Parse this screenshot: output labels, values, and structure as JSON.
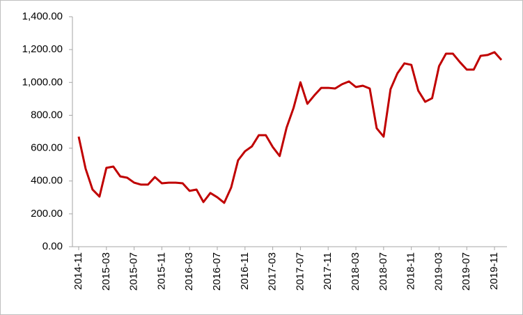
{
  "chart_data": {
    "type": "line",
    "categories": [
      "2014-11",
      null,
      null,
      null,
      "2015-03",
      null,
      null,
      null,
      "2015-07",
      null,
      null,
      null,
      "2015-11",
      null,
      null,
      null,
      "2016-03",
      null,
      null,
      null,
      "2016-07",
      null,
      null,
      null,
      "2016-11",
      null,
      null,
      null,
      "2017-03",
      null,
      null,
      null,
      "2017-07",
      null,
      null,
      null,
      "2017-11",
      null,
      null,
      null,
      "2018-03",
      null,
      null,
      null,
      "2018-07",
      null,
      null,
      null,
      "2018-11",
      null,
      null,
      null,
      "2019-03",
      null,
      null,
      null,
      "2019-07",
      null,
      null,
      null,
      "2019-11",
      null
    ],
    "series": [
      {
        "color": "#c00000",
        "values": [
          670,
          475,
          348,
          305,
          480,
          488,
          428,
          420,
          390,
          378,
          378,
          424,
          386,
          390,
          390,
          386,
          340,
          348,
          272,
          327,
          301,
          267,
          360,
          526,
          581,
          611,
          679,
          679,
          607,
          552,
          725,
          844,
          1001,
          870,
          921,
          967,
          967,
          963,
          989,
          1006,
          972,
          980,
          963,
          721,
          670,
          959,
          1056,
          1116,
          1107,
          950,
          882,
          904,
          1099,
          1175,
          1175,
          1124,
          1078,
          1078,
          1162,
          1167,
          1184,
          1137
        ]
      }
    ],
    "ylim": [
      0,
      1400
    ],
    "yticks": [
      {
        "value": 0,
        "label": "0.00"
      },
      {
        "value": 200,
        "label": "200.00"
      },
      {
        "value": 400,
        "label": "400.00"
      },
      {
        "value": 600,
        "label": "600.00"
      },
      {
        "value": 800,
        "label": "800.00"
      },
      {
        "value": 1000,
        "label": "1,000.00"
      },
      {
        "value": 1200,
        "label": "1,200.00"
      },
      {
        "value": 1400,
        "label": "1,400.00"
      }
    ],
    "grid": false
  }
}
